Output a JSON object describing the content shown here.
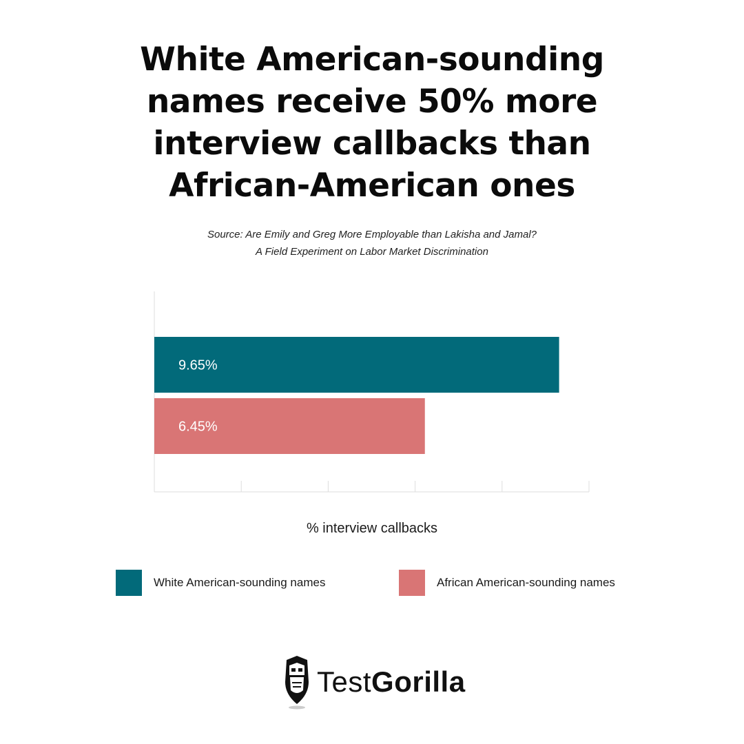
{
  "header": {
    "title_lines": [
      "White American-sounding",
      "names receive 50% more",
      "interview callbacks than",
      "African-American ones"
    ],
    "source_lines": [
      "Source: Are Emily and Greg More Employable than Lakisha and Jamal?",
      "A Field Experiment on Labor Market Discrimination"
    ]
  },
  "chart_data": {
    "type": "bar",
    "orientation": "horizontal",
    "categories": [
      "White American-sounding names",
      "African American-sounding names"
    ],
    "values": [
      9.65,
      6.45
    ],
    "value_labels": [
      "9.65%",
      "6.45%"
    ],
    "colors": [
      "#026a7a",
      "#d97575"
    ],
    "xlabel": "% interview callbacks",
    "ylabel": "",
    "xlim": [
      0,
      10
    ],
    "tick_count": 5,
    "grid": false,
    "legend": {
      "placement": "bottom",
      "items": [
        {
          "label": "White American-sounding names",
          "color": "#026a7a"
        },
        {
          "label": "African American-sounding names",
          "color": "#d97575"
        }
      ]
    }
  },
  "logo": {
    "text_regular": "Test",
    "text_bold": "Gorilla"
  },
  "colors": {
    "axis": "#dddddd",
    "text": "#111111"
  }
}
